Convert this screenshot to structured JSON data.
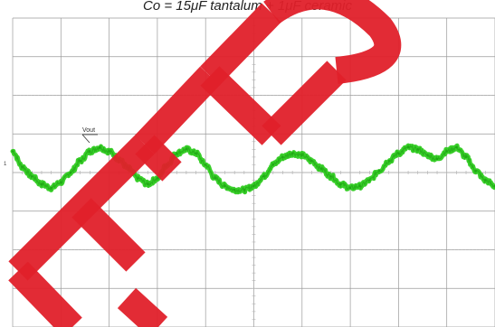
{
  "caption": "Co = 15μF tantalum + 1μF ceramic",
  "chart_data": {
    "type": "line",
    "title": "Co = 15μF tantalum + 1μF ceramic",
    "xlabel": "",
    "ylabel": "",
    "grid": true,
    "xlim": [
      0,
      10
    ],
    "ylim": [
      -4,
      4
    ],
    "series": [
      {
        "name": "Vout",
        "x": [
          0.0,
          0.2,
          0.4,
          0.6,
          0.8,
          1.0,
          1.2,
          1.4,
          1.6,
          1.8,
          2.0,
          2.2,
          2.4,
          2.6,
          2.8,
          3.0,
          3.2,
          3.4,
          3.6,
          3.8,
          4.0,
          4.2,
          4.4,
          4.6,
          4.8,
          5.0,
          5.2,
          5.4,
          5.6,
          5.8,
          6.0,
          6.2,
          6.4,
          6.6,
          6.8,
          7.0,
          7.2,
          7.4,
          7.6,
          7.8,
          8.0,
          8.2,
          8.4,
          8.6,
          8.8,
          9.0,
          9.2,
          9.4,
          9.6,
          9.8,
          10.0
        ],
        "values": [
          0.55,
          0.15,
          -0.1,
          -0.3,
          -0.4,
          -0.25,
          0.0,
          0.3,
          0.55,
          0.65,
          0.55,
          0.35,
          0.1,
          -0.15,
          -0.3,
          -0.15,
          0.2,
          0.5,
          0.6,
          0.5,
          0.2,
          -0.15,
          -0.35,
          -0.45,
          -0.45,
          -0.35,
          -0.1,
          0.2,
          0.4,
          0.5,
          0.45,
          0.3,
          0.1,
          -0.1,
          -0.3,
          -0.4,
          -0.35,
          -0.2,
          0.05,
          0.3,
          0.5,
          0.65,
          0.6,
          0.45,
          0.35,
          0.55,
          0.65,
          0.4,
          0.05,
          -0.2,
          -0.35
        ]
      }
    ],
    "annotations": [
      {
        "text": "Vout"
      }
    ],
    "colors": {
      "trace": "#2ecc1f",
      "grid": "#9a9a9a",
      "minor_tick": "#b0b0b0",
      "watermark": "#e0202a"
    }
  }
}
